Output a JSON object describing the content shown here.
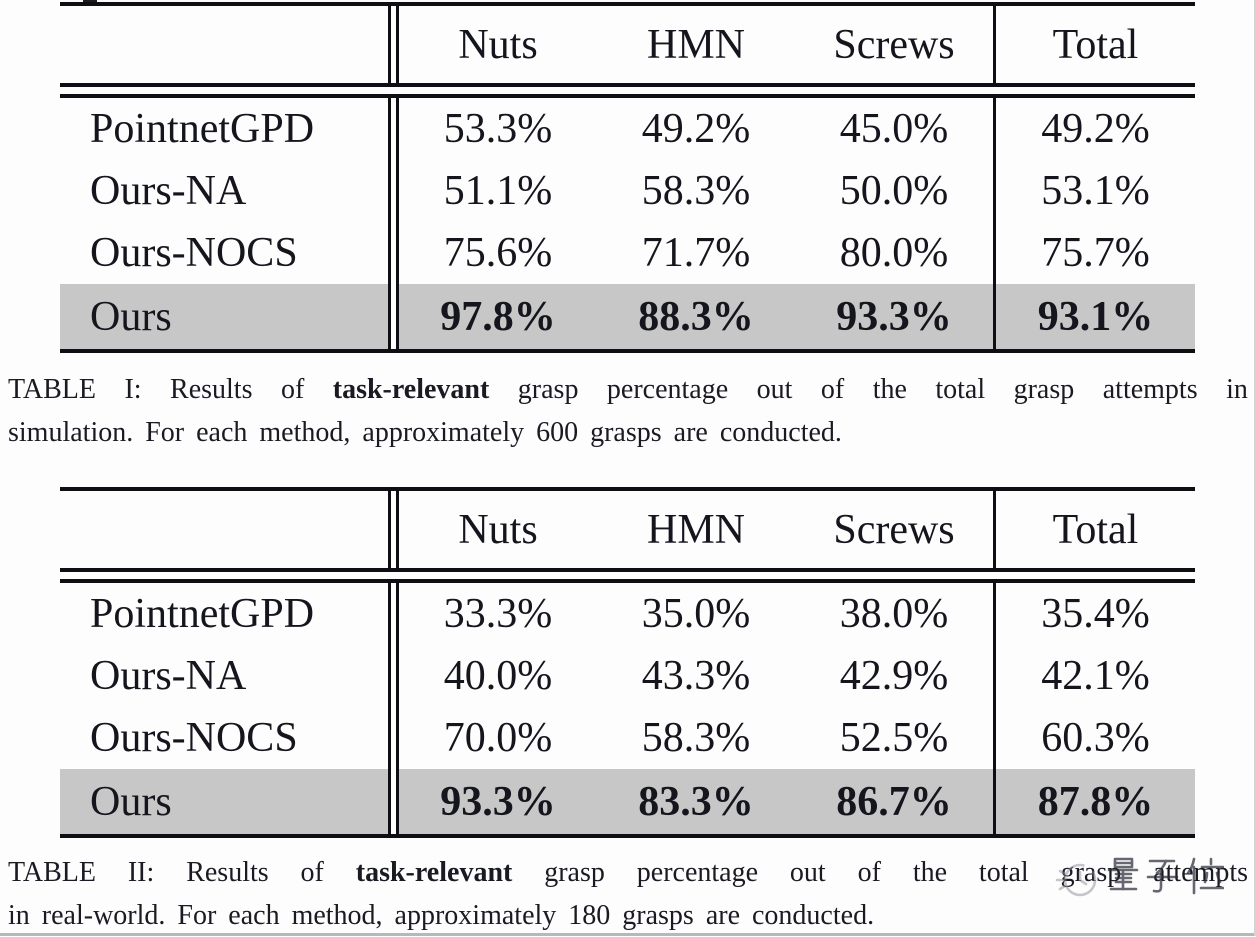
{
  "colors": {
    "text": "#15151d",
    "rule": "#0e0e14",
    "highlight_row": "#c7c7c7",
    "caption_text": "#1a1a22",
    "watermark_text": "#2e2e3c",
    "watermark_icon": "#8f8f98",
    "background": "#fdfdfe"
  },
  "tables": [
    {
      "name": "simulation-results",
      "columns": [
        "Nuts",
        "HMN",
        "Screws",
        "Total"
      ],
      "rows": [
        {
          "label": "PointnetGPD",
          "values": [
            "53.3%",
            "49.2%",
            "45.0%",
            "49.2%"
          ],
          "highlight": false
        },
        {
          "label": "Ours-NA",
          "values": [
            "51.1%",
            "58.3%",
            "50.0%",
            "53.1%"
          ],
          "highlight": false
        },
        {
          "label": "Ours-NOCS",
          "values": [
            "75.6%",
            "71.7%",
            "80.0%",
            "75.7%"
          ],
          "highlight": false
        },
        {
          "label": "Ours",
          "values": [
            "97.8%",
            "88.3%",
            "93.3%",
            "93.1%"
          ],
          "highlight": true
        }
      ],
      "caption": {
        "line1": "TABLE I: Results of task-relevant grasp percentage out of the total grasp attempts in",
        "line2": "simulation. For each method, approximately 600 grasps are conducted.",
        "bold_phrase": "task-relevant"
      }
    },
    {
      "name": "real-world-results",
      "columns": [
        "Nuts",
        "HMN",
        "Screws",
        "Total"
      ],
      "rows": [
        {
          "label": "PointnetGPD",
          "values": [
            "33.3%",
            "35.0%",
            "38.0%",
            "35.4%"
          ],
          "highlight": false
        },
        {
          "label": "Ours-NA",
          "values": [
            "40.0%",
            "43.3%",
            "42.9%",
            "42.1%"
          ],
          "highlight": false
        },
        {
          "label": "Ours-NOCS",
          "values": [
            "70.0%",
            "58.3%",
            "52.5%",
            "60.3%"
          ],
          "highlight": false
        },
        {
          "label": "Ours",
          "values": [
            "93.3%",
            "83.3%",
            "86.7%",
            "87.8%"
          ],
          "highlight": true
        }
      ],
      "caption": {
        "line1": "TABLE II: Results of task-relevant grasp percentage out of the total grasp attempts",
        "line2": "in real-world. For each method, approximately 180 grasps are conducted.",
        "bold_phrase": "task-relevant"
      }
    }
  ],
  "watermark": {
    "text": "量子位",
    "icon": "qbitai-logo-icon"
  }
}
